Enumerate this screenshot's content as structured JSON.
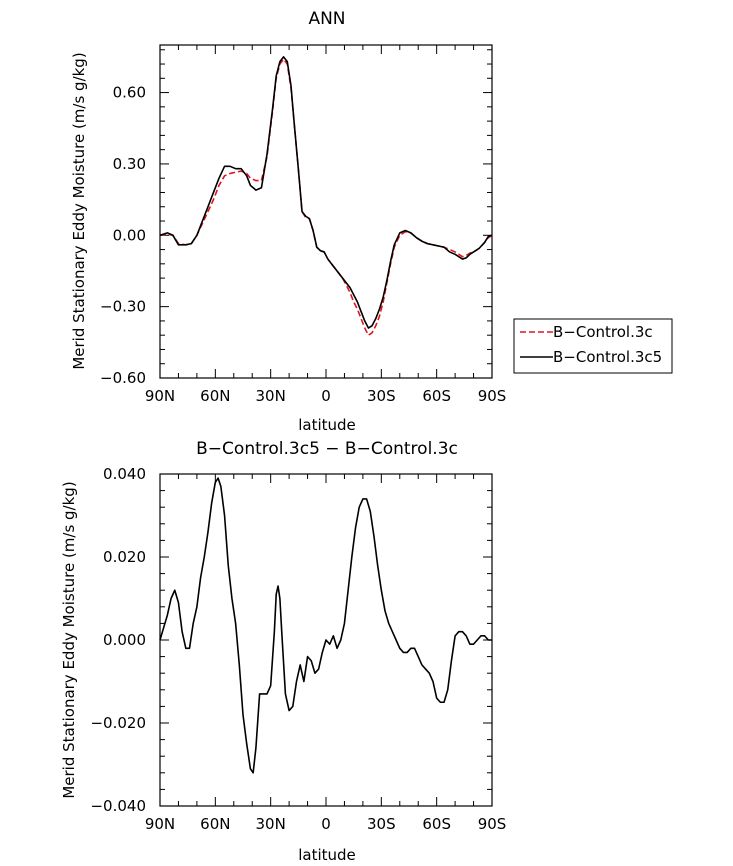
{
  "chart_data": [
    {
      "type": "line",
      "title": "ANN",
      "xlabel": "latitude",
      "ylabel": "Merid Stationary Eddy Moisture (m/s g/kg)",
      "xlim": [
        90,
        -90
      ],
      "ylim": [
        -0.6,
        0.8
      ],
      "x_ticks": [
        90,
        60,
        30,
        0,
        -30,
        -60,
        -90
      ],
      "x_tick_labels": [
        "90N",
        "60N",
        "30N",
        "0",
        "30S",
        "60S",
        "90S"
      ],
      "y_ticks": [
        -0.6,
        -0.3,
        0.0,
        0.3,
        0.6
      ],
      "y_tick_labels": [
        "−0.60",
        "−0.30",
        "0.00",
        "0.30",
        "0.60"
      ],
      "legend": {
        "placement": "right",
        "entries": [
          {
            "label": "B−Control.3c",
            "color": "#e0141e",
            "dash": "dashed"
          },
          {
            "label": "B−Control.3c5",
            "color": "#000000",
            "dash": "solid"
          }
        ]
      },
      "series": [
        {
          "name": "B−Control.3c",
          "color": "#e0141e",
          "dash": "dashed",
          "x": [
            90,
            86,
            83,
            80,
            76,
            73,
            70,
            67,
            64,
            61,
            58,
            55,
            52,
            49,
            46,
            43,
            41,
            38,
            35,
            32,
            29,
            27,
            25,
            23,
            21,
            19,
            17,
            15,
            13,
            11,
            9,
            7,
            5,
            3,
            1,
            -1,
            -3,
            -5,
            -7,
            -9,
            -11,
            -13,
            -15,
            -17,
            -19,
            -21,
            -23,
            -25,
            -27,
            -29,
            -31,
            -33,
            -35,
            -37,
            -40,
            -43,
            -46,
            -49,
            -52,
            -55,
            -58,
            -61,
            -64,
            -67,
            -70,
            -72,
            -74,
            -76,
            -78,
            -80,
            -83,
            -86,
            -88,
            -90
          ],
          "y": [
            0.0,
            0.005,
            0.0,
            -0.035,
            -0.04,
            -0.035,
            0.0,
            0.05,
            0.1,
            0.15,
            0.21,
            0.25,
            0.26,
            0.265,
            0.27,
            0.26,
            0.24,
            0.23,
            0.23,
            0.33,
            0.52,
            0.66,
            0.72,
            0.74,
            0.72,
            0.62,
            0.45,
            0.28,
            0.1,
            0.075,
            0.07,
            0.02,
            -0.05,
            -0.065,
            -0.07,
            -0.1,
            -0.12,
            -0.14,
            -0.16,
            -0.18,
            -0.21,
            -0.24,
            -0.28,
            -0.31,
            -0.35,
            -0.39,
            -0.42,
            -0.41,
            -0.38,
            -0.34,
            -0.28,
            -0.2,
            -0.12,
            -0.05,
            0.0,
            0.015,
            0.01,
            -0.01,
            -0.025,
            -0.035,
            -0.04,
            -0.045,
            -0.05,
            -0.06,
            -0.07,
            -0.08,
            -0.09,
            -0.085,
            -0.075,
            -0.07,
            -0.055,
            -0.03,
            -0.01,
            0.0
          ]
        },
        {
          "name": "B−Control.3c5",
          "color": "#000000",
          "dash": "solid",
          "x": [
            90,
            86,
            83,
            80,
            76,
            73,
            70,
            67,
            64,
            61,
            58,
            55,
            52,
            49,
            46,
            43,
            41,
            38,
            35,
            32,
            29,
            27,
            25,
            23,
            21,
            19,
            17,
            15,
            13,
            11,
            9,
            7,
            5,
            3,
            1,
            -1,
            -3,
            -5,
            -7,
            -9,
            -11,
            -13,
            -15,
            -17,
            -19,
            -21,
            -23,
            -25,
            -27,
            -29,
            -31,
            -33,
            -35,
            -37,
            -40,
            -43,
            -46,
            -49,
            -52,
            -55,
            -58,
            -61,
            -64,
            -67,
            -70,
            -72,
            -74,
            -76,
            -78,
            -80,
            -83,
            -86,
            -88,
            -90
          ],
          "y": [
            0.0,
            0.01,
            0.0,
            -0.04,
            -0.04,
            -0.035,
            0.0,
            0.06,
            0.12,
            0.18,
            0.24,
            0.29,
            0.29,
            0.28,
            0.28,
            0.25,
            0.21,
            0.19,
            0.2,
            0.34,
            0.53,
            0.67,
            0.73,
            0.75,
            0.73,
            0.63,
            0.45,
            0.28,
            0.1,
            0.08,
            0.07,
            0.02,
            -0.05,
            -0.065,
            -0.07,
            -0.1,
            -0.12,
            -0.14,
            -0.16,
            -0.18,
            -0.2,
            -0.22,
            -0.25,
            -0.28,
            -0.32,
            -0.36,
            -0.39,
            -0.38,
            -0.35,
            -0.31,
            -0.26,
            -0.19,
            -0.11,
            -0.04,
            0.01,
            0.02,
            0.01,
            -0.01,
            -0.025,
            -0.035,
            -0.04,
            -0.045,
            -0.05,
            -0.07,
            -0.08,
            -0.09,
            -0.1,
            -0.095,
            -0.08,
            -0.07,
            -0.055,
            -0.03,
            -0.005,
            0.0
          ]
        }
      ]
    },
    {
      "type": "line",
      "title": "B−Control.3c5 − B−Control.3c",
      "xlabel": "latitude",
      "ylabel": "Merid Stationary Eddy Moisture (m/s g/kg)",
      "xlim": [
        90,
        -90
      ],
      "ylim": [
        -0.04,
        0.04
      ],
      "x_ticks": [
        90,
        60,
        30,
        0,
        -30,
        -60,
        -90
      ],
      "x_tick_labels": [
        "90N",
        "60N",
        "30N",
        "0",
        "30S",
        "60S",
        "90S"
      ],
      "y_ticks": [
        -0.04,
        -0.02,
        0.0,
        0.02,
        0.04
      ],
      "y_tick_labels": [
        "−0.040",
        "−0.020",
        "0.000",
        "0.020",
        "0.040"
      ],
      "series": [
        {
          "name": "difference",
          "color": "#000000",
          "dash": "solid",
          "x": [
            90,
            88,
            86,
            84,
            82,
            80,
            78,
            76,
            74,
            72,
            70,
            68,
            66,
            64,
            62,
            60,
            58.5,
            57,
            55,
            53,
            51,
            49,
            47,
            45,
            43,
            41,
            39.5,
            38,
            36,
            34,
            32,
            30,
            28,
            27,
            26,
            25,
            24,
            22,
            20,
            18,
            16,
            14,
            12,
            10,
            8,
            6,
            4,
            2,
            0,
            -2,
            -4,
            -6,
            -8,
            -10,
            -12,
            -14,
            -16,
            -18,
            -20,
            -22,
            -24,
            -26,
            -28,
            -30,
            -32,
            -34,
            -36,
            -38,
            -40,
            -42,
            -44,
            -46,
            -48,
            -50,
            -52,
            -54,
            -56,
            -58,
            -60,
            -62,
            -64,
            -66,
            -68,
            -70,
            -72,
            -74,
            -76,
            -78,
            -80,
            -82,
            -84,
            -86,
            -88,
            -90
          ],
          "y": [
            0.0,
            0.003,
            0.006,
            0.01,
            0.012,
            0.009,
            0.002,
            -0.002,
            -0.002,
            0.004,
            0.008,
            0.015,
            0.02,
            0.026,
            0.033,
            0.038,
            0.039,
            0.037,
            0.03,
            0.018,
            0.01,
            0.004,
            -0.006,
            -0.018,
            -0.025,
            -0.031,
            -0.032,
            -0.026,
            -0.013,
            -0.013,
            -0.013,
            -0.011,
            0.002,
            0.011,
            0.013,
            0.01,
            0.002,
            -0.013,
            -0.017,
            -0.016,
            -0.01,
            -0.006,
            -0.01,
            -0.004,
            -0.005,
            -0.008,
            -0.007,
            -0.003,
            0.0,
            -0.001,
            0.001,
            -0.002,
            0.0,
            0.004,
            0.012,
            0.02,
            0.027,
            0.032,
            0.034,
            0.034,
            0.031,
            0.025,
            0.018,
            0.012,
            0.007,
            0.004,
            0.002,
            0.0,
            -0.002,
            -0.003,
            -0.003,
            -0.002,
            -0.002,
            -0.004,
            -0.006,
            -0.007,
            -0.008,
            -0.01,
            -0.014,
            -0.015,
            -0.015,
            -0.012,
            -0.005,
            0.001,
            0.002,
            0.002,
            0.001,
            -0.001,
            -0.001,
            0.0,
            0.001,
            0.001,
            0.0,
            0.0
          ]
        }
      ]
    }
  ]
}
